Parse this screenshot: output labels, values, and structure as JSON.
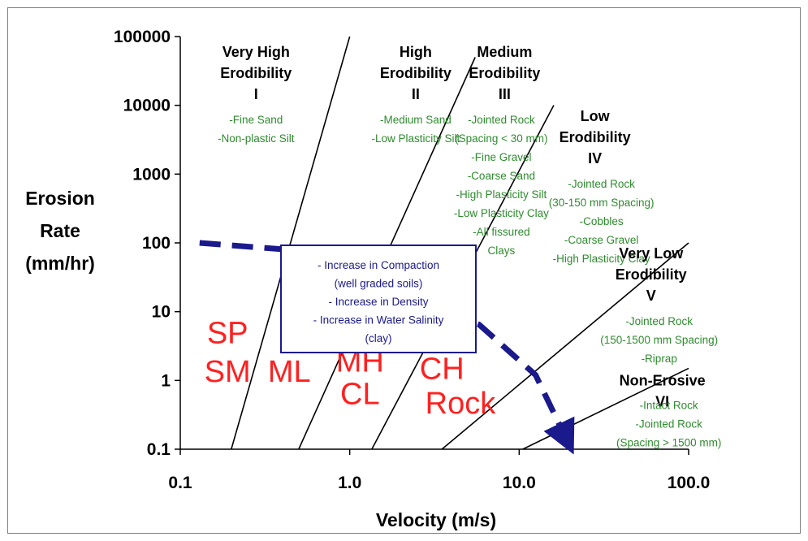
{
  "chart_data": {
    "type": "line",
    "xlabel": "Velocity (m/s)",
    "ylabel_lines": [
      "Erosion",
      "Rate",
      "(mm/hr)"
    ],
    "xscale": "log",
    "yscale": "log",
    "xlim": [
      0.1,
      100
    ],
    "ylim": [
      0.1,
      100000
    ],
    "x_ticks": [
      {
        "value": 0.1,
        "label": "0.1"
      },
      {
        "value": 1,
        "label": "1.0"
      },
      {
        "value": 10,
        "label": "10.0"
      },
      {
        "value": 100,
        "label": "100.0"
      }
    ],
    "y_ticks": [
      {
        "value": 0.1,
        "label": "0.1"
      },
      {
        "value": 1,
        "label": "1"
      },
      {
        "value": 10,
        "label": "10"
      },
      {
        "value": 100,
        "label": "100"
      },
      {
        "value": 1000,
        "label": "1000"
      },
      {
        "value": 10000,
        "label": "10000"
      },
      {
        "value": 100000,
        "label": "100000"
      }
    ],
    "grid": false,
    "boundaries": [
      {
        "from": [
          0.2,
          0.1
        ],
        "to": [
          1.0,
          100000
        ]
      },
      {
        "from": [
          0.5,
          0.1
        ],
        "to": [
          5.5,
          50000
        ]
      },
      {
        "from": [
          1.35,
          0.1
        ],
        "to": [
          16,
          10000
        ]
      },
      {
        "from": [
          3.5,
          0.1
        ],
        "to": [
          100,
          100
        ]
      },
      {
        "from": [
          10.5,
          0.1
        ],
        "to": [
          100,
          1.5
        ]
      }
    ],
    "zones": [
      {
        "lines": [
          "Very High",
          "Erodibility",
          "I"
        ],
        "x": 0.28,
        "y": 60000,
        "materials": [
          "-Fine Sand",
          "-Non-plastic Silt"
        ]
      },
      {
        "lines": [
          "High",
          "Erodibility",
          "II"
        ],
        "x": 2.45,
        "y": 60000,
        "materials": [
          "-Medium Sand",
          "-Low Plasticity Silt"
        ]
      },
      {
        "lines": [
          "Medium",
          "Erodibility",
          "III"
        ],
        "x": 8.2,
        "y": 60000,
        "materials": [
          "-Jointed Rock",
          "(Spacing < 30 mm)",
          "-Fine Gravel",
          "-Coarse Sand",
          "-High Plasticity Silt",
          "-Low Plasticity Clay",
          "-All fissured",
          "Clays"
        ]
      },
      {
        "lines": [
          "Low",
          "Erodibility",
          "IV"
        ],
        "x": 28,
        "y": 7000,
        "materials": [
          "-Jointed Rock",
          "(30-150 mm Spacing)",
          "-Cobbles",
          "-Coarse Gravel",
          "-High Plasticity Clay"
        ]
      },
      {
        "lines": [
          "Very Low",
          "Erodibility",
          "V"
        ],
        "x": 60,
        "y": 70,
        "materials": [
          "-Jointed Rock",
          "(150-1500 mm Spacing)",
          "-Riprap"
        ]
      },
      {
        "lines": [
          "Non-Erosive",
          "VI"
        ],
        "x": 70,
        "y": 1.0,
        "materials": [
          "-Intact Rock",
          "-Jointed Rock",
          "(Spacing > 1500 mm)"
        ]
      }
    ],
    "soil_labels": [
      {
        "text": "SP",
        "x": 0.19,
        "y": 3.5
      },
      {
        "text": "SM",
        "x": 0.19,
        "y": 0.95
      },
      {
        "text": "ML",
        "x": 0.44,
        "y": 0.95
      },
      {
        "text": "MH",
        "x": 1.15,
        "y": 1.35
      },
      {
        "text": "CL",
        "x": 1.15,
        "y": 0.45
      },
      {
        "text": "CH",
        "x": 3.5,
        "y": 1.05
      },
      {
        "text": "Rock",
        "x": 4.5,
        "y": 0.33
      }
    ],
    "trend_arrow": {
      "points": [
        [
          0.13,
          100
        ],
        [
          0.42,
          80
        ],
        [
          5.8,
          6.5
        ],
        [
          12.5,
          1.2
        ],
        [
          19,
          0.14
        ]
      ],
      "color": "#1a1a8c"
    },
    "annotation_box": {
      "lines": [
        "- Increase in Compaction",
        "(well graded soils)",
        "- Increase in Density",
        "- Increase in Water Salinity",
        "(clay)"
      ]
    }
  },
  "colors": {
    "material_text": "#2e8b2e",
    "soil_text": "#ff2020",
    "arrow": "#1a1a8c",
    "box_border": "#1a1a8c"
  }
}
